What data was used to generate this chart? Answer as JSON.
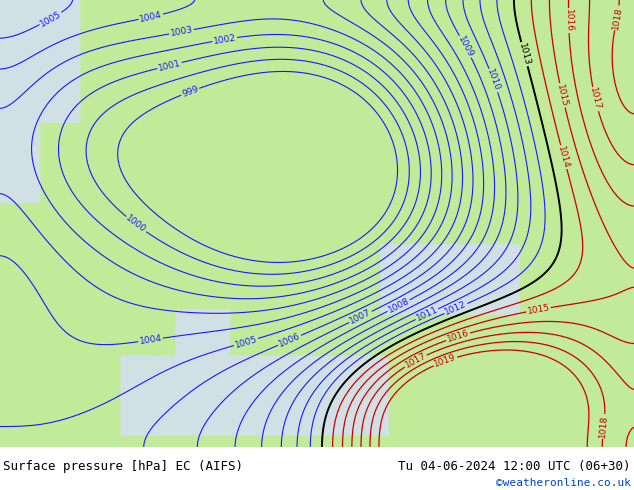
{
  "title_left": "Surface pressure [hPa] EC (AIFS)",
  "title_right": "Tu 04-06-2024 12:00 UTC (06+30)",
  "credit": "©weatheronline.co.uk",
  "land_color": [
    0.76,
    0.92,
    0.6,
    1.0
  ],
  "sea_color": [
    0.82,
    0.88,
    0.9,
    1.0
  ],
  "contour_blue": "#1a1aff",
  "contour_black": "#000000",
  "contour_red": "#cc0000",
  "label_fontsize": 6.5,
  "footer_fontsize": 9,
  "credit_color": "#0044cc",
  "fig_bg": "#ffffff",
  "border_color": "#888888",
  "levels_blue": [
    999,
    1000,
    1001,
    1002,
    1003,
    1004,
    1005,
    1006,
    1007,
    1008,
    1009,
    1010,
    1011,
    1012
  ],
  "levels_black": [
    1013
  ],
  "levels_red": [
    1014,
    1015,
    1016,
    1017,
    1018,
    1019
  ]
}
